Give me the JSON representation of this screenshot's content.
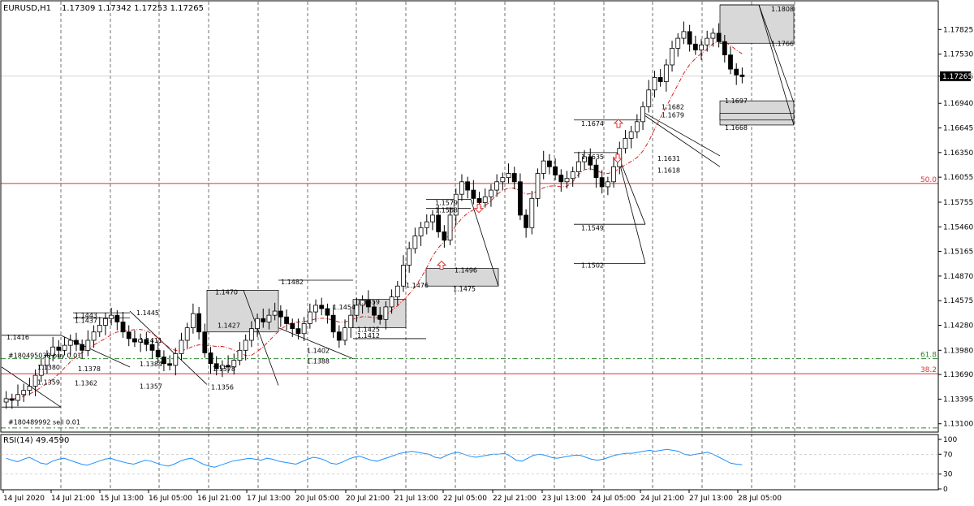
{
  "header": {
    "symbol": "EURUSD,H1",
    "ohlc": "1.17309 1.17342 1.17253 1.17265",
    "rsi_label": "RSI(14) 49.4590"
  },
  "colors": {
    "candle": "#000000",
    "ma": "#d91e1e",
    "fib_red": "#e03030",
    "fib_green": "#2a8a2a",
    "rsi": "#1e90ff",
    "zone": "#d8d8d8",
    "price_box": "#000000"
  },
  "chart_data": [
    {
      "type": "candlestick",
      "title": "EURUSD,H1",
      "ylim": [
        1.131,
        1.18
      ],
      "y_ticks": [
        "1.17825",
        "1.17530",
        "1.17265",
        "1.16940",
        "1.16645",
        "1.16350",
        "1.16055",
        "1.15755",
        "1.15460",
        "1.15165",
        "1.14870",
        "1.14575",
        "1.14280",
        "1.13980",
        "1.13690",
        "1.13395",
        "1.13100"
      ],
      "current_price": "1.17265",
      "x_ticks": [
        "14 Jul 2020",
        "14 Jul 21:00",
        "15 Jul 13:00",
        "16 Jul 05:00",
        "16 Jul 21:00",
        "17 Jul 13:00",
        "20 Jul 05:00",
        "20 Jul 21:00",
        "21 Jul 13:00",
        "22 Jul 05:00",
        "22 Jul 21:00",
        "23 Jul 13:00",
        "24 Jul 05:00",
        "24 Jul 21:00",
        "27 Jul 13:00",
        "28 Jul 05:00"
      ],
      "close_path": [
        1.134,
        1.1338,
        1.1345,
        1.135,
        1.1355,
        1.1368,
        1.138,
        1.1392,
        1.1402,
        1.1398,
        1.1404,
        1.141,
        1.1405,
        1.1398,
        1.141,
        1.142,
        1.1428,
        1.1436,
        1.144,
        1.1432,
        1.142,
        1.1412,
        1.1408,
        1.1411,
        1.1405,
        1.1398,
        1.139,
        1.1382,
        1.138,
        1.1394,
        1.141,
        1.1425,
        1.1442,
        1.142,
        1.1395,
        1.1382,
        1.1376,
        1.138,
        1.1378,
        1.1386,
        1.1398,
        1.141,
        1.1424,
        1.1436,
        1.1432,
        1.144,
        1.1445,
        1.1438,
        1.143,
        1.1424,
        1.1418,
        1.143,
        1.1444,
        1.1452,
        1.1448,
        1.144,
        1.142,
        1.141,
        1.1425,
        1.144,
        1.1452,
        1.1458,
        1.145,
        1.144,
        1.1435,
        1.145,
        1.1462,
        1.1475,
        1.15,
        1.152,
        1.1535,
        1.1545,
        1.1552,
        1.156,
        1.154,
        1.153,
        1.156,
        1.1585,
        1.16,
        1.159,
        1.158,
        1.1575,
        1.1582,
        1.159,
        1.16,
        1.1605,
        1.161,
        1.16,
        1.156,
        1.1545,
        1.158,
        1.161,
        1.1625,
        1.1618,
        1.1608,
        1.16,
        1.1604,
        1.1612,
        1.1624,
        1.163,
        1.162,
        1.1605,
        1.1594,
        1.16,
        1.1618,
        1.164,
        1.1652,
        1.166,
        1.1672,
        1.169,
        1.171,
        1.1725,
        1.172,
        1.174,
        1.176,
        1.1772,
        1.178,
        1.1765,
        1.1758,
        1.1764,
        1.1772,
        1.1778,
        1.1768,
        1.1752,
        1.1735,
        1.1728,
        1.1726
      ],
      "moving_average_color": "#d91e1e",
      "fibonacci_levels": [
        {
          "label": "50.0",
          "price": 1.1598,
          "color": "#e03030"
        },
        {
          "label": "61.8",
          "price": 1.1388,
          "color": "#2a8a2a"
        },
        {
          "label": "38.2",
          "price": 1.137,
          "color": "#e03030"
        }
      ],
      "price_labels": [
        "1.1808",
        "1.1766",
        "1.1697",
        "1.1682",
        "1.1679",
        "1.1674",
        "1.1668",
        "1.1635",
        "1.1631",
        "1.1618",
        "1.1579",
        "1.1568",
        "1.1549",
        "1.1502",
        "1.1496",
        "1.1482",
        "1.1475",
        "1.1476",
        "1.1470",
        "1.1459",
        "1.1454",
        "1.1445",
        "1.1443",
        "1.1437",
        "1.1427",
        "1.1425",
        "1.1416",
        "1.1411",
        "1.1412",
        "1.1402",
        "1.1388",
        "1.1384",
        "1.1380",
        "1.1378",
        "1.1378",
        "1.1362",
        "1.1359",
        "1.1357",
        "1.1356"
      ],
      "order_labels": [
        "#180495038 buy 0.01",
        "#180489992 sell 0.01"
      ]
    },
    {
      "type": "line",
      "title": "RSI(14) 49.4590",
      "ylim": [
        0,
        100
      ],
      "y_ticks": [
        "100",
        "70",
        "30",
        "0"
      ],
      "values": [
        62,
        58,
        55,
        60,
        64,
        58,
        52,
        50,
        56,
        60,
        62,
        58,
        54,
        50,
        48,
        52,
        56,
        60,
        62,
        58,
        55,
        52,
        50,
        54,
        58,
        56,
        52,
        48,
        46,
        50,
        56,
        60,
        62,
        56,
        50,
        46,
        44,
        48,
        52,
        56,
        58,
        60,
        62,
        60,
        58,
        62,
        60,
        56,
        54,
        52,
        50,
        55,
        60,
        64,
        62,
        58,
        52,
        50,
        54,
        60,
        64,
        66,
        62,
        58,
        56,
        60,
        64,
        68,
        72,
        74,
        76,
        74,
        72,
        70,
        64,
        62,
        68,
        72,
        74,
        70,
        66,
        64,
        66,
        68,
        70,
        70,
        72,
        66,
        58,
        56,
        62,
        68,
        70,
        68,
        64,
        62,
        64,
        66,
        68,
        68,
        64,
        60,
        58,
        60,
        64,
        68,
        70,
        72,
        72,
        74,
        76,
        78,
        76,
        78,
        80,
        78,
        76,
        70,
        68,
        70,
        72,
        74,
        70,
        64,
        58,
        52,
        50,
        49
      ]
    }
  ]
}
